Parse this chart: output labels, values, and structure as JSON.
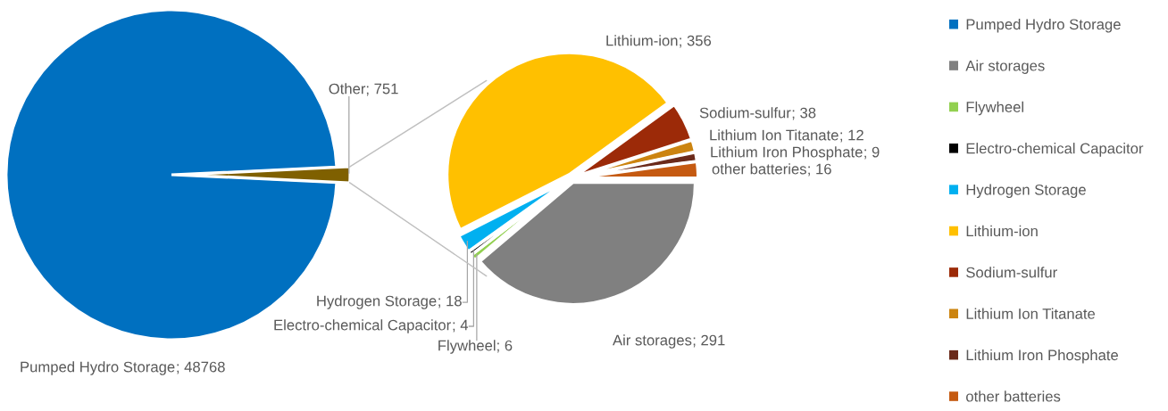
{
  "chart_data": [
    {
      "type": "pie",
      "categories": [
        "Pumped Hydro Storage",
        "Other"
      ],
      "values": [
        48768,
        751
      ],
      "value_labels": [
        "; 48768",
        "; 751"
      ],
      "colors": [
        "#0070c0",
        "#7f6000"
      ],
      "legend": "right"
    },
    {
      "type": "pie",
      "categories": [
        "Air storages",
        "Flywheel",
        "Electro-chemical Capacitor",
        "Hydrogen Storage",
        "Lithium-ion",
        "Sodium-sulfur",
        "Lithium Ion Titanate",
        "Lithium Iron Phosphate",
        "other batteries"
      ],
      "values": [
        291,
        6,
        4,
        18,
        356,
        38,
        12,
        9,
        16
      ],
      "value_labels": [
        "; 291",
        "; 6",
        "; 4",
        "; 18",
        "; 356",
        "; 38",
        "; 12",
        "; 9",
        "; 16"
      ],
      "colors": [
        "#808080",
        "#92d050",
        "#000000",
        "#00b0f0",
        "#ffc000",
        "#9c2a08",
        "#cc8410",
        "#6b2a1a",
        "#c55a11"
      ],
      "legend": "right"
    }
  ]
}
